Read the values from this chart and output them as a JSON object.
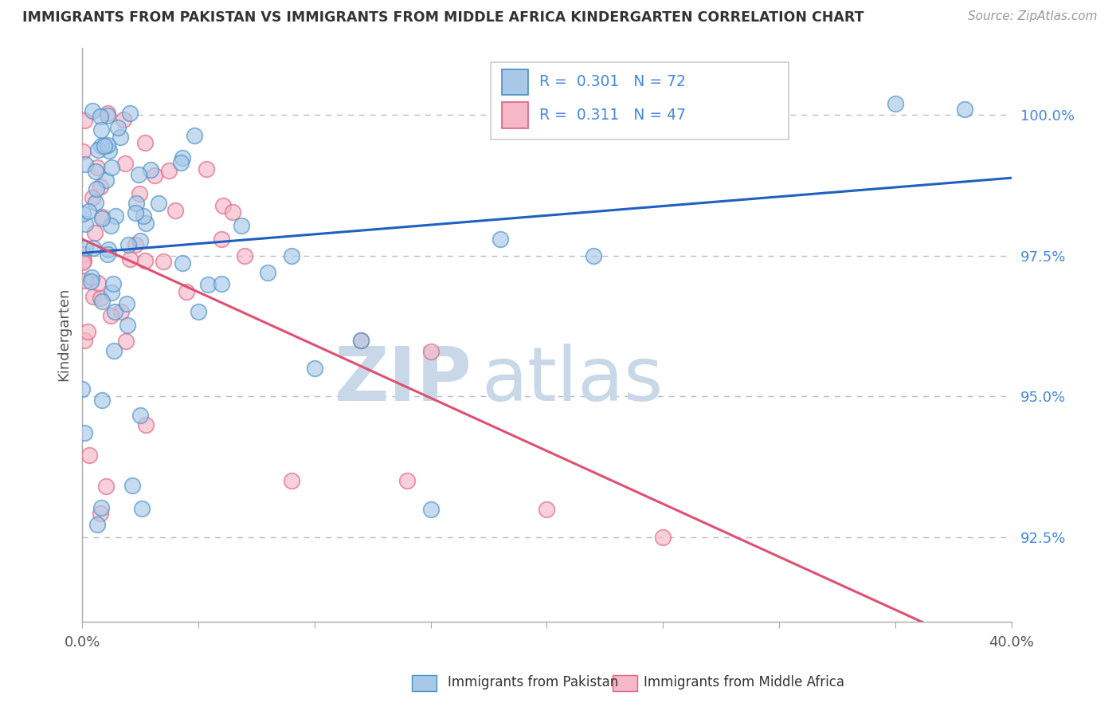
{
  "title": "IMMIGRANTS FROM PAKISTAN VS IMMIGRANTS FROM MIDDLE AFRICA KINDERGARTEN CORRELATION CHART",
  "source": "Source: ZipAtlas.com",
  "ylabel_label": "Kindergarten",
  "legend_blue_r": "0.301",
  "legend_blue_n": "72",
  "legend_pink_r": "0.311",
  "legend_pink_n": "47",
  "blue_face": "#a8c8e8",
  "blue_edge": "#4a90c4",
  "pink_face": "#f4b8c8",
  "pink_edge": "#e06080",
  "line_blue_color": "#2060c0",
  "line_pink_color": "#e05070",
  "xlim": [
    0.0,
    0.4
  ],
  "ylim": [
    91.0,
    101.2
  ],
  "yticks": [
    92.5,
    95.0,
    97.5,
    100.0
  ],
  "xticks": [
    0.0,
    0.05,
    0.1,
    0.15,
    0.2,
    0.25,
    0.3,
    0.35,
    0.4
  ],
  "xticklabels_ends": [
    "0.0%",
    "40.0%"
  ],
  "yticklabels": [
    "92.5%",
    "95.0%",
    "97.5%",
    "100.0%"
  ],
  "ytick_color": "#4488dd",
  "grid_color": "#bbbbcc",
  "background": "#ffffff",
  "watermark_zip": "ZIP",
  "watermark_atlas": "atlas",
  "watermark_color": "#c8d8e8",
  "scatter_size": 200,
  "scatter_alpha": 0.65,
  "line_width": 2.2
}
